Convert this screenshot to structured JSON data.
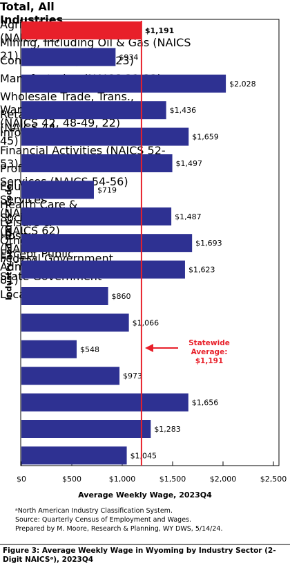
{
  "chart_data": {
    "type": "bar",
    "orientation": "horizontal",
    "ylabel": "Industry and NAICSᵃ Code",
    "xlabel": "Average Weekly Wage, 2023Q4",
    "categories": [
      "Total, All Industries",
      "Agriculture (NAICS 11)",
      "Mining, Including Oil & Gas (NAICS 21)",
      "Construction (NAICS 23)",
      "Manufacturing (NAICS 31-33)",
      "Wholesale Trade, Trans., Warehousing, & Utilities (NAICS 42, 48-49, 22)",
      "Retail Trade (NAICS 44-45)",
      "Information (NAICS 51)",
      "Financial Activities (NAICS 52-53)",
      "Professional & Business Services (NAICS 54-56)",
      "Educational Services (NAICS 61)",
      "Health Care & Social Assistance (NAICS 62)",
      "Leisure & Hosp. (NAICS 71-72)",
      "Other Services, Except Public Admin. (NAICS 81)",
      "Federal Government",
      "State Government",
      "Local Government"
    ],
    "values": [
      1191,
      934,
      2028,
      1436,
      1659,
      1497,
      719,
      1487,
      1693,
      1623,
      860,
      1066,
      548,
      973,
      1656,
      1283,
      1045
    ],
    "value_labels": [
      "$1,191",
      "$934",
      "$2,028",
      "$1,436",
      "$1,659",
      "$1,497",
      "$719",
      "$1,487",
      "$1,693",
      "$1,623",
      "$860",
      "$1,066",
      "$548",
      "$973",
      "$1,656",
      "$1,283",
      "$1,045"
    ],
    "colors": [
      "#e8202a",
      "#2e3192",
      "#2e3192",
      "#2e3192",
      "#2e3192",
      "#2e3192",
      "#2e3192",
      "#2e3192",
      "#2e3192",
      "#2e3192",
      "#2e3192",
      "#2e3192",
      "#2e3192",
      "#2e3192",
      "#2e3192",
      "#2e3192",
      "#2e3192"
    ],
    "xlim": [
      0,
      2500
    ],
    "xticks": [
      {
        "value": 0,
        "label": "$0"
      },
      {
        "value": 500,
        "label": "$500"
      },
      {
        "value": 1000,
        "label": "$1,000"
      },
      {
        "value": 1500,
        "label": "$1,500"
      },
      {
        "value": 2000,
        "label": "$2,000"
      },
      {
        "value": 2500,
        "label": "$2,500"
      }
    ],
    "annotation": "Statewide Average: $1,191",
    "reference_color": "#e8202a"
  },
  "footnotes": [
    "ᵃNorth American Industry Classification System.",
    "Source: Quarterly Census of Employment and Wages.",
    "Prepared by M. Moore, Research & Planning, WY DWS, 5/14/24."
  ],
  "caption": "Figure 3: Average Weekly Wage in Wyoming by Industry Sector (2-Digit NAICSᵃ), 2023Q4"
}
